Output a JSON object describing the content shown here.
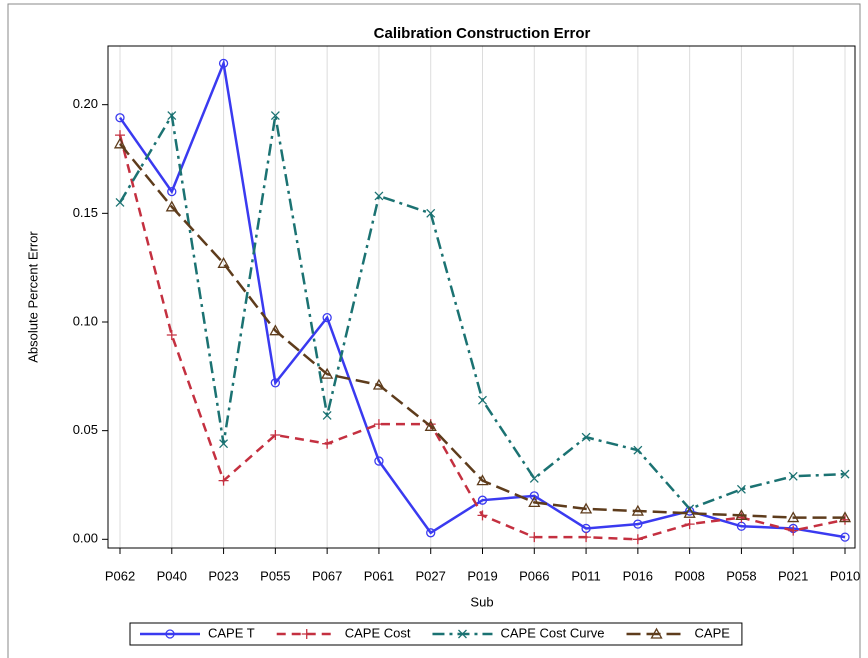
{
  "chart_data": {
    "type": "line",
    "title": "Calibration Construction Error",
    "x_label": "Sub",
    "y_label": "Absolute Percent Error",
    "categories": [
      "P062",
      "P040",
      "P023",
      "P055",
      "P067",
      "P061",
      "P027",
      "P019",
      "P066",
      "P011",
      "P016",
      "P008",
      "P058",
      "P021",
      "P010"
    ],
    "ylim": [
      -0.004,
      0.227
    ],
    "yticks": [
      {
        "value": 0,
        "label": "0.00"
      },
      {
        "value": 0.05,
        "label": "0.05"
      },
      {
        "value": 0.1,
        "label": "0.10"
      },
      {
        "value": 0.15,
        "label": "0.15"
      },
      {
        "value": 0.2,
        "label": "0.20"
      }
    ],
    "grid": true,
    "series": [
      {
        "name": "CAPE T",
        "color": "#3a3af0",
        "marker": "circle",
        "dash": "solid",
        "values": [
          0.194,
          0.16,
          0.219,
          0.072,
          0.102,
          0.036,
          0.003,
          0.018,
          0.02,
          0.005,
          0.007,
          0.013,
          0.006,
          0.005,
          0.001
        ]
      },
      {
        "name": "CAPE Cost",
        "color": "#c43040",
        "marker": "plus",
        "dash": "dashed",
        "values": [
          0.186,
          0.094,
          0.027,
          0.048,
          0.044,
          0.053,
          0.053,
          0.011,
          0.001,
          0.001,
          0.0,
          0.007,
          0.01,
          0.004,
          0.009
        ]
      },
      {
        "name": "CAPE Cost Curve",
        "color": "#1b7272",
        "marker": "x",
        "dash": "dashdot",
        "values": [
          0.155,
          0.195,
          0.044,
          0.195,
          0.057,
          0.158,
          0.15,
          0.064,
          0.028,
          0.047,
          0.041,
          0.014,
          0.023,
          0.029,
          0.03
        ]
      },
      {
        "name": "CAPE",
        "color": "#5e3c1c",
        "marker": "triangle",
        "dash": "longdash",
        "values": [
          0.182,
          0.153,
          0.127,
          0.096,
          0.076,
          0.071,
          0.052,
          0.027,
          0.017,
          0.014,
          0.013,
          0.012,
          0.011,
          0.01,
          0.01
        ]
      }
    ]
  }
}
